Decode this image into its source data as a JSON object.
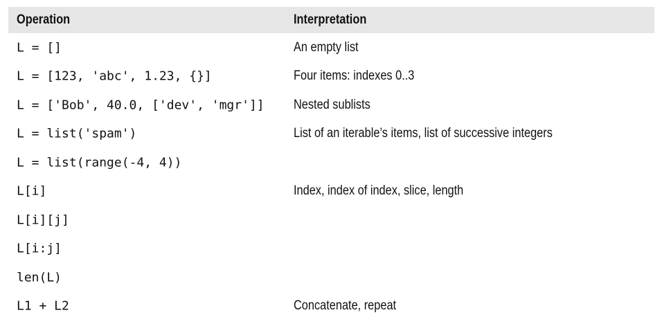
{
  "table": {
    "headers": {
      "operation": "Operation",
      "interpretation": "Interpretation"
    },
    "rows": [
      {
        "operation": "L = []",
        "interpretation": "An empty list"
      },
      {
        "operation": "L = [123, 'abc', 1.23, {}]",
        "interpretation": "Four items: indexes 0..3"
      },
      {
        "operation": "L = ['Bob', 40.0, ['dev', 'mgr']]",
        "interpretation": "Nested sublists"
      },
      {
        "operation": "L = list('spam')",
        "interpretation": "List of an iterable’s items, list of successive integers"
      },
      {
        "operation": "L = list(range(-4, 4))",
        "interpretation": ""
      },
      {
        "operation": "L[i]",
        "interpretation": "Index, index of index, slice, length"
      },
      {
        "operation": "L[i][j]",
        "interpretation": ""
      },
      {
        "operation": "L[i:j]",
        "interpretation": ""
      },
      {
        "operation": "len(L)",
        "interpretation": ""
      },
      {
        "operation": "L1 + L2",
        "interpretation": "Concatenate, repeat"
      }
    ]
  }
}
